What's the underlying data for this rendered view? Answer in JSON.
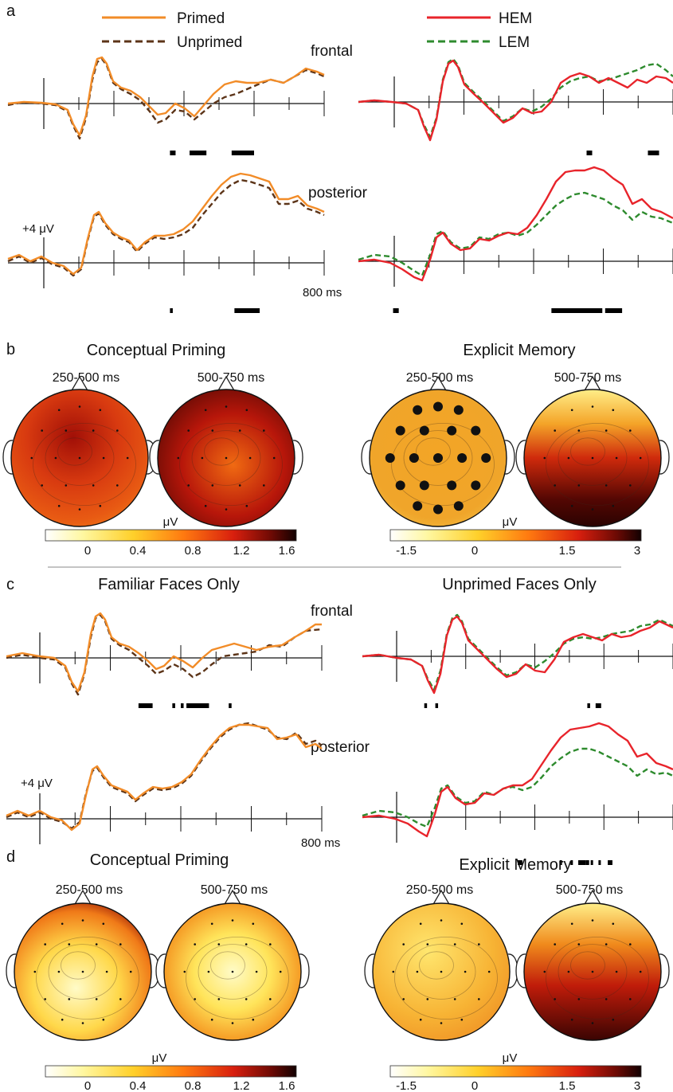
{
  "panels": {
    "a": "a",
    "b": "b",
    "c": "c",
    "d": "d"
  },
  "legend": {
    "primed": "Primed",
    "unprimed": "Unprimed",
    "hem": "HEM",
    "lem": "LEM"
  },
  "colors": {
    "primed": "#F28C28",
    "unprimed": "#5C3418",
    "hem": "#E8242B",
    "lem": "#2E8B2E"
  },
  "regions": {
    "frontal": "frontal",
    "posterior": "posterior"
  },
  "scale": {
    "voltage": "+4 μV",
    "time": "800 ms"
  },
  "titles": {
    "b_left": "Conceptual Priming",
    "b_right": "Explicit Memory",
    "c_left": "Familiar Faces Only",
    "c_right": "Unprimed Faces Only",
    "d_left": "Conceptual Priming",
    "d_right": "Explicit Memory"
  },
  "windows": {
    "early": "250-500 ms",
    "late": "500-750 ms"
  },
  "colorbars": {
    "unit": "μV",
    "priming_ticks": [
      "0",
      "0.4",
      "0.8",
      "1.2",
      "1.6"
    ],
    "memory_ticks": [
      "-1.5",
      "0",
      "1.5",
      "3"
    ]
  },
  "significance": {
    "a_primed_frontal": [
      [
        0.45,
        0.47
      ],
      [
        0.52,
        0.58
      ],
      [
        0.67,
        0.75
      ]
    ],
    "a_primed_posterior": [
      [
        0.45,
        0.46
      ],
      [
        0.68,
        0.77
      ]
    ],
    "a_hem_frontal": [
      [
        0.69,
        0.71
      ],
      [
        0.91,
        0.95
      ]
    ],
    "a_hem_posterior": [
      [
        0.01,
        0.03
      ],
      [
        0.57,
        0.75
      ],
      [
        0.76,
        0.82
      ]
    ],
    "c_primed_frontal": [
      [
        0.35,
        0.4
      ],
      [
        0.47,
        0.48
      ],
      [
        0.5,
        0.51
      ],
      [
        0.52,
        0.6
      ],
      [
        0.67,
        0.68
      ]
    ],
    "c_hem_frontal": [
      [
        0.1,
        0.11
      ],
      [
        0.14,
        0.15
      ],
      [
        0.69,
        0.7
      ],
      [
        0.72,
        0.74
      ]
    ],
    "c_hem_posterior": [
      [
        0.0,
        0.03
      ],
      [
        0.27,
        0.28
      ],
      [
        0.34,
        0.35
      ],
      [
        0.39,
        0.44
      ],
      [
        0.44,
        0.46
      ],
      [
        0.47,
        0.48
      ],
      [
        0.52,
        0.53
      ],
      [
        0.58,
        0.61
      ]
    ]
  }
}
